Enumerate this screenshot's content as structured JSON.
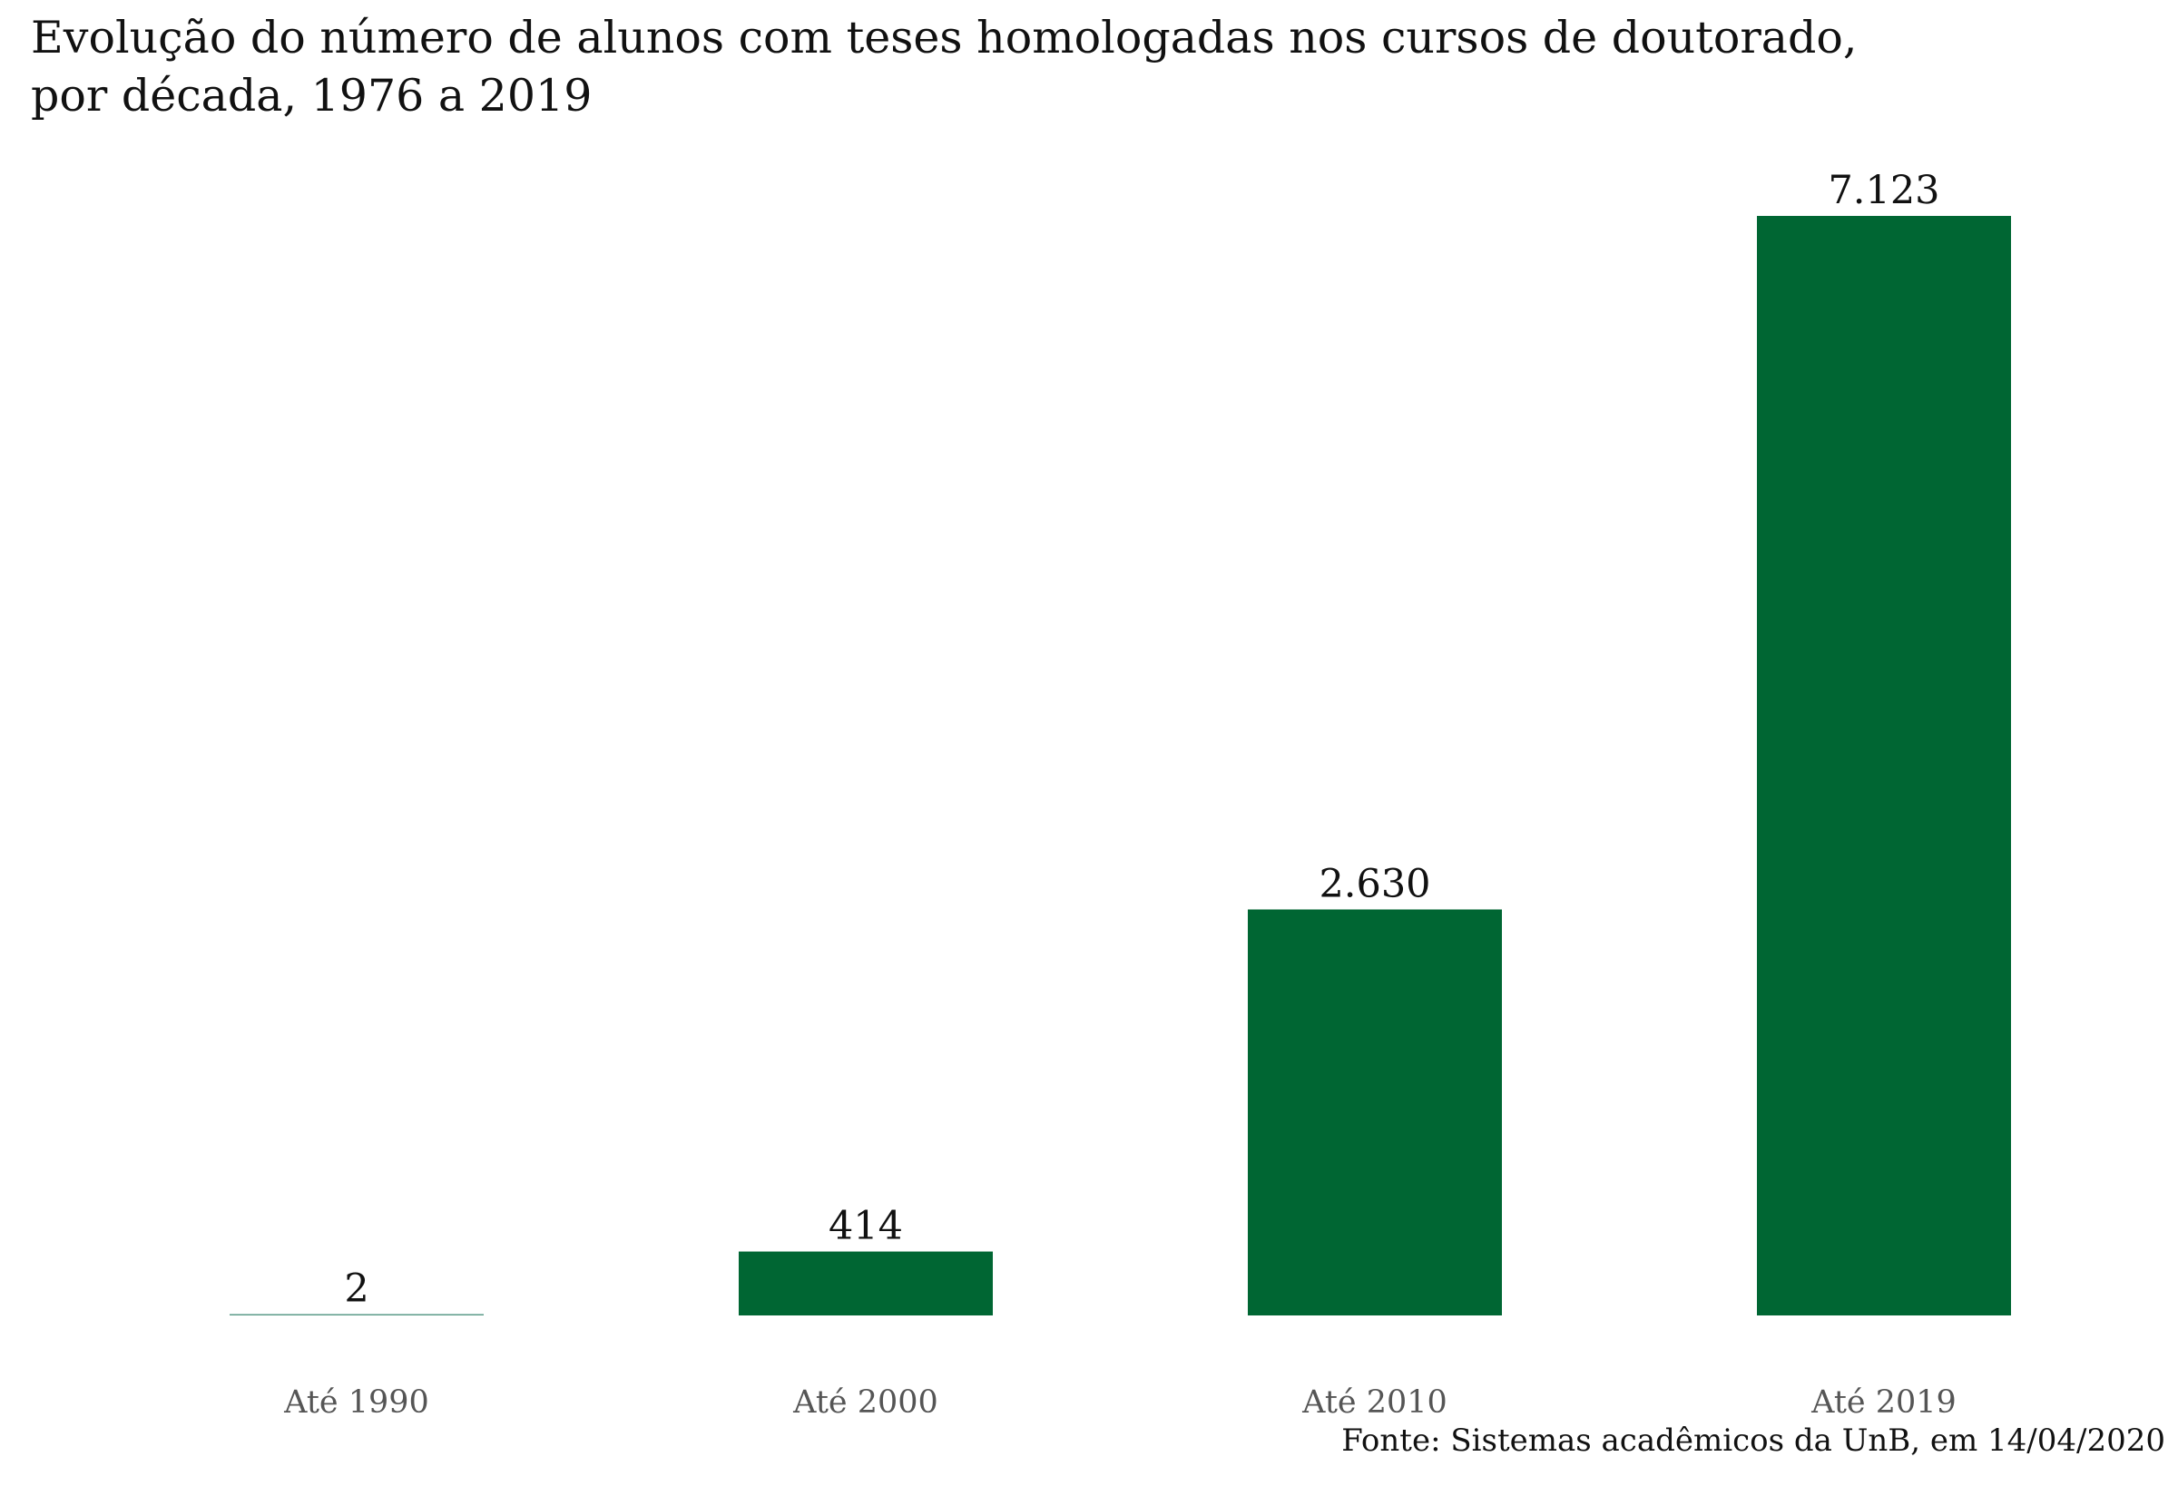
{
  "title_lines": [
    "Evolução do número de alunos com teses homologadas nos cursos de doutorado,",
    "por década, 1976 a 2019"
  ],
  "source": "Fonte: Sistemas acadêmicos da UnB, em 14/04/2020",
  "colors": {
    "bar": "#006633",
    "value_label": "#111111",
    "category_label": "#555555"
  },
  "chart_data": {
    "type": "bar",
    "title": "Evolução do número de alunos com teses homologadas nos cursos de doutorado, por década, 1976 a 2019",
    "categories": [
      "Até 1990",
      "Até 2000",
      "Até 2010",
      "Até 2019"
    ],
    "values": [
      2,
      414,
      2630,
      7123
    ],
    "value_labels": [
      "2",
      "414",
      "2.630",
      "7.123"
    ],
    "xlabel": "",
    "ylabel": "",
    "ylim": [
      0,
      7123
    ],
    "grid": false,
    "legend": "none"
  }
}
